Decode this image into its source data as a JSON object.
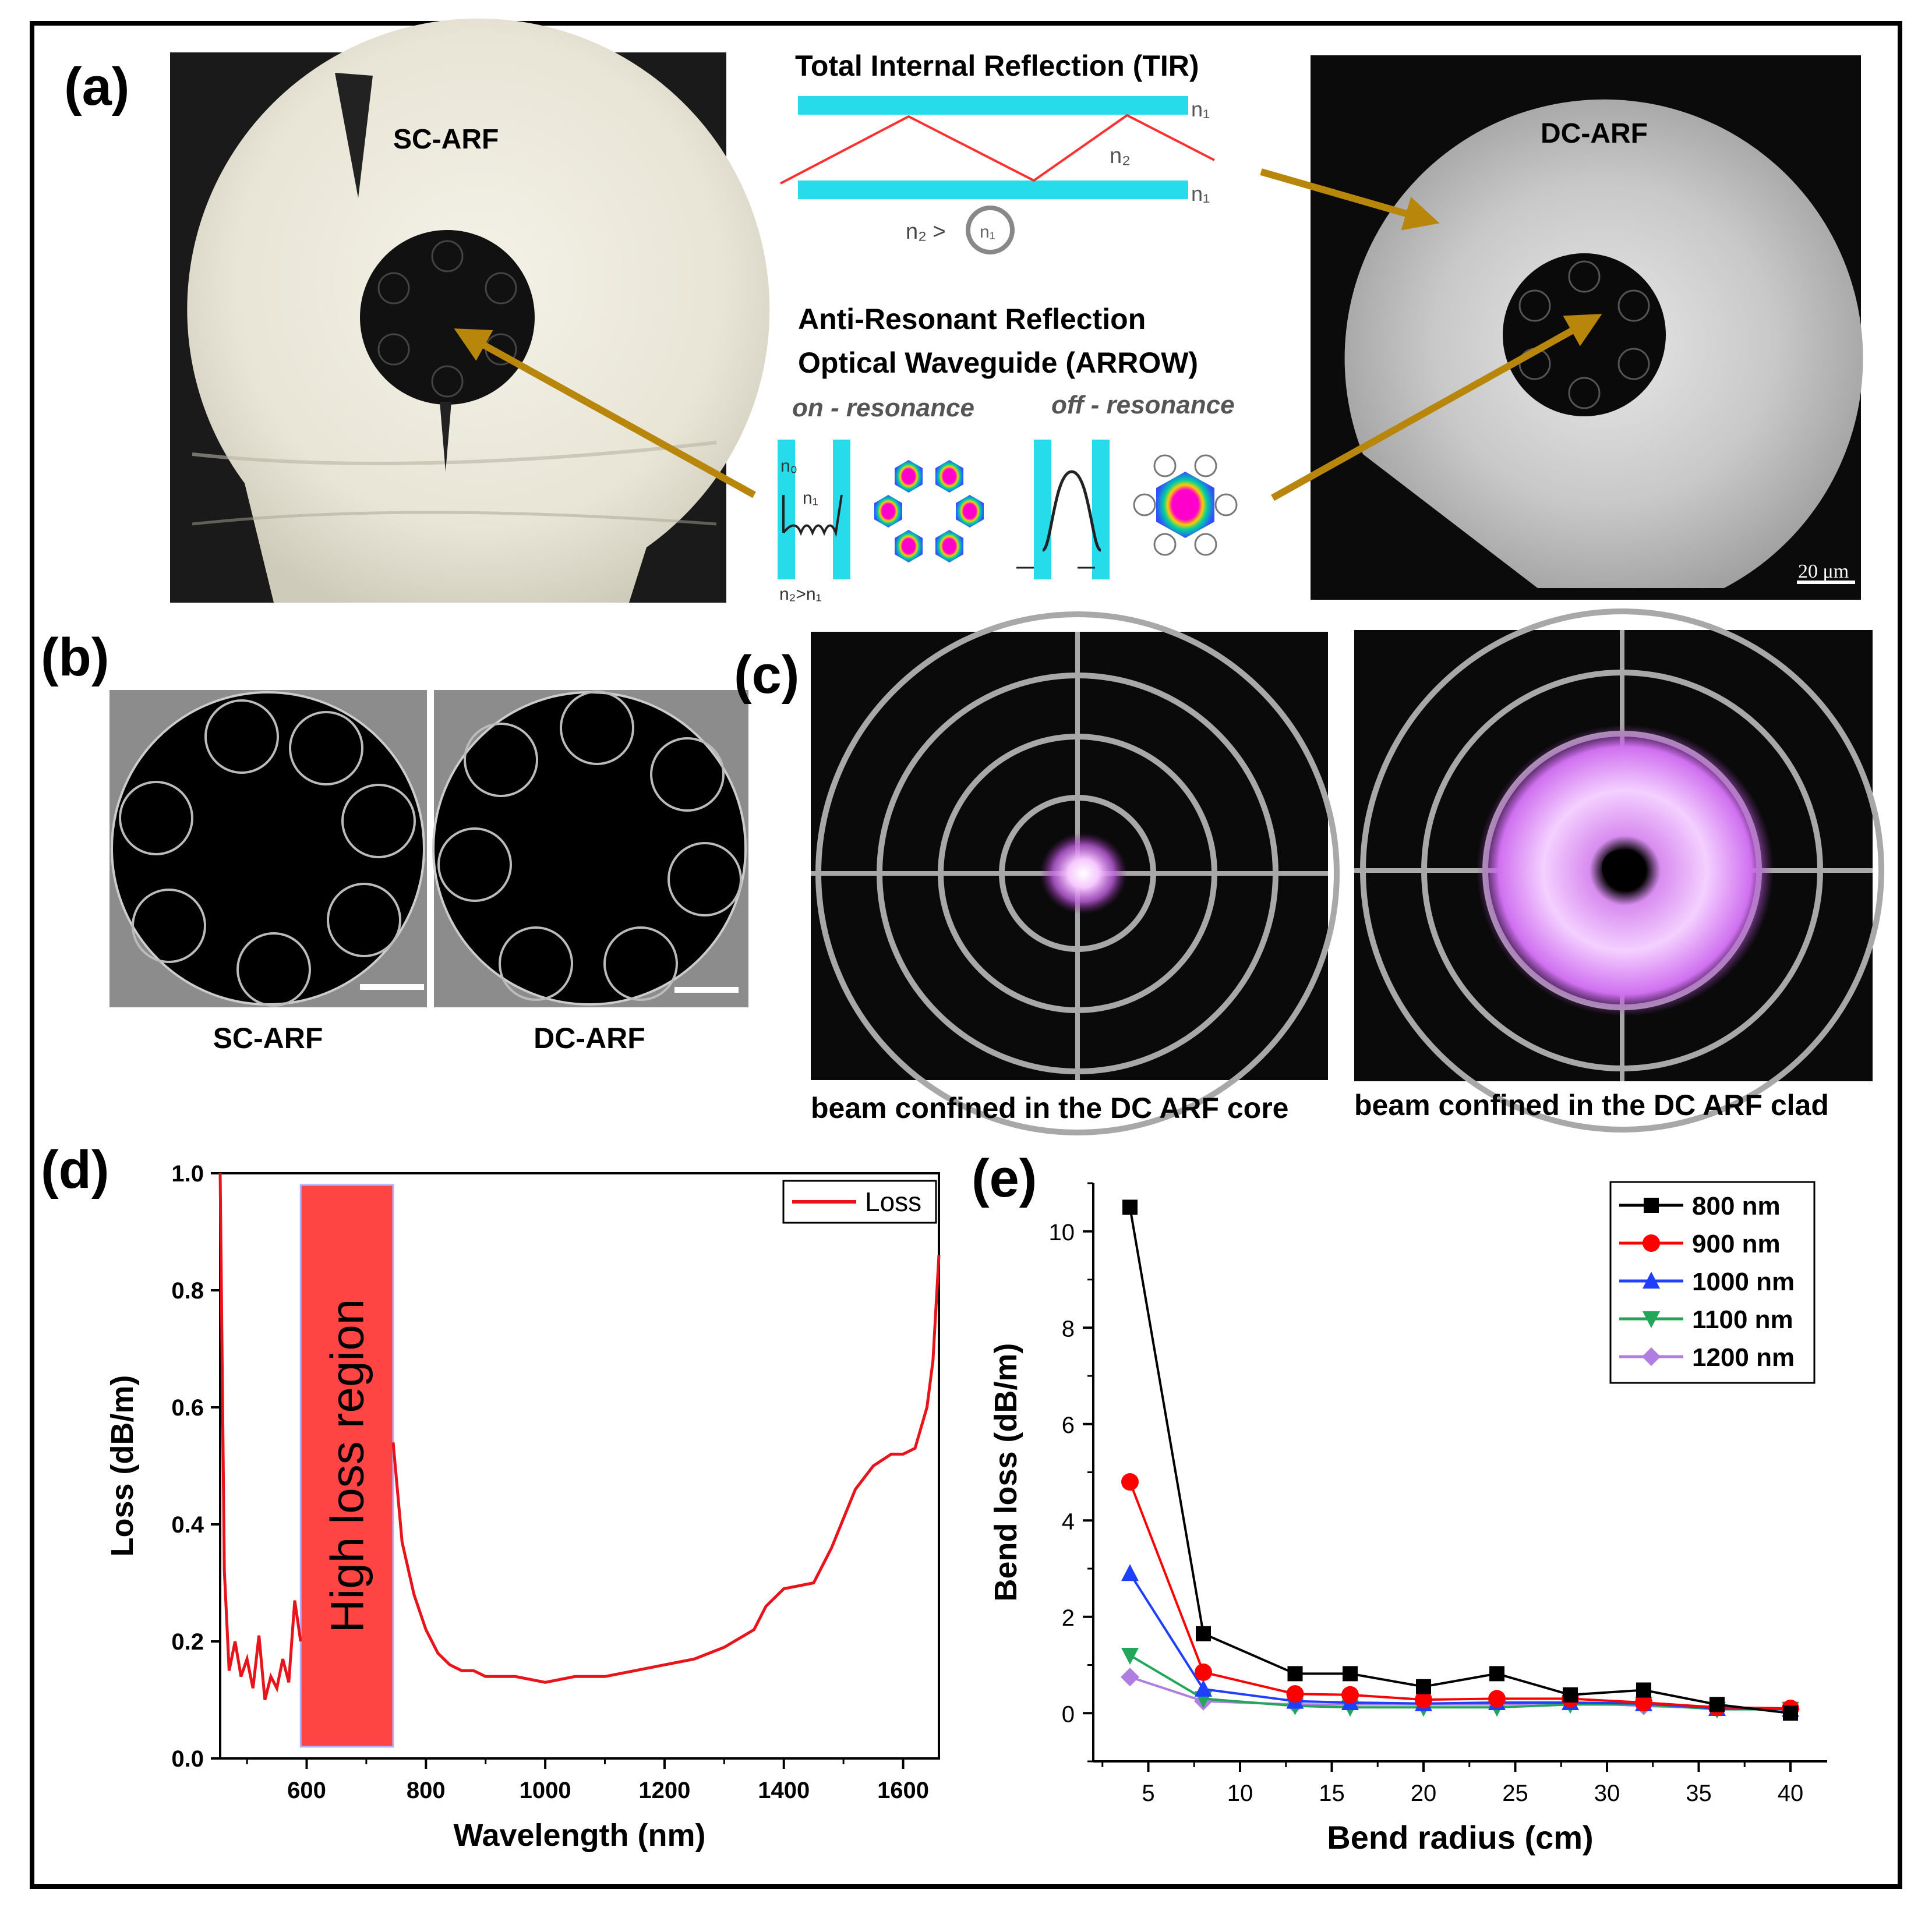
{
  "panels": {
    "a": {
      "label": "(a)",
      "sc_label": "SC-ARF",
      "dc_label": "DC-ARF",
      "tir_title": "Total Internal Reflection (TIR)",
      "n1_top": "n₁",
      "n1_bottom": "n₁",
      "n2": "n₂",
      "n2_gt": "n₂ >",
      "n1_small": "n₁",
      "arrow_title_1": "Anti-Resonant Reflection",
      "arrow_title_2": "Optical Waveguide (ARROW)",
      "on_res": "on - resonance",
      "off_res": "off - resonance",
      "n0_label": "n₀",
      "n1_label": "n₁",
      "n2gt_label": "n₂>n₁",
      "scale_bar": "20 μm"
    },
    "b": {
      "label": "(b)",
      "sc": "SC-ARF",
      "dc": "DC-ARF"
    },
    "c": {
      "label": "(c)",
      "caption_core": "beam confined in the DC ARF core",
      "caption_clad": "beam confined in the DC ARF clad"
    },
    "d": {
      "label": "(d)"
    },
    "e": {
      "label": "(e)"
    }
  },
  "chart_data": [
    {
      "type": "line",
      "panel": "d",
      "xlabel": "Wavelength (nm)",
      "ylabel": "Loss (dB/m)",
      "xlim": [
        455,
        1660
      ],
      "ylim": [
        0,
        1.0
      ],
      "xticks": [
        "600",
        "800",
        "1000",
        "1200",
        "1400",
        "1600"
      ],
      "yticks": [
        "0.0",
        "0.2",
        "0.4",
        "0.6",
        "0.8",
        "1.0"
      ],
      "legend": [
        "Loss"
      ],
      "annotation": "High loss region",
      "region_x": [
        590,
        745
      ],
      "color": "#e8141b",
      "x": [
        455,
        462,
        470,
        480,
        490,
        500,
        510,
        520,
        530,
        540,
        550,
        560,
        570,
        580,
        590,
        745,
        760,
        780,
        800,
        820,
        840,
        860,
        880,
        900,
        950,
        1000,
        1050,
        1100,
        1150,
        1200,
        1250,
        1300,
        1350,
        1370,
        1400,
        1450,
        1480,
        1500,
        1520,
        1550,
        1580,
        1600,
        1620,
        1640,
        1650,
        1660
      ],
      "y": [
        1.0,
        0.32,
        0.15,
        0.2,
        0.14,
        0.17,
        0.12,
        0.21,
        0.1,
        0.14,
        0.12,
        0.17,
        0.13,
        0.27,
        0.2,
        0.54,
        0.37,
        0.28,
        0.22,
        0.18,
        0.16,
        0.15,
        0.15,
        0.14,
        0.14,
        0.13,
        0.14,
        0.14,
        0.15,
        0.16,
        0.17,
        0.19,
        0.22,
        0.26,
        0.29,
        0.3,
        0.36,
        0.41,
        0.46,
        0.5,
        0.52,
        0.52,
        0.53,
        0.6,
        0.68,
        0.86
      ]
    },
    {
      "type": "line",
      "panel": "e",
      "xlabel": "Bend radius (cm)",
      "ylabel": "Bend loss (dB/m)",
      "xlim": [
        2,
        42
      ],
      "ylim": [
        -1,
        11
      ],
      "xticks": [
        "5",
        "10",
        "15",
        "20",
        "25",
        "30",
        "35",
        "40"
      ],
      "yticks": [
        "0",
        "2",
        "4",
        "6",
        "8",
        "10"
      ],
      "x": [
        4,
        8,
        13,
        16,
        20,
        24,
        28,
        32,
        36,
        40
      ],
      "series": [
        {
          "name": "800 nm",
          "color": "#000000",
          "marker": "square",
          "values": [
            10.5,
            1.65,
            0.82,
            0.82,
            0.55,
            0.82,
            0.38,
            0.48,
            0.18,
            0.0
          ]
        },
        {
          "name": "900 nm",
          "color": "#ff0000",
          "marker": "circle",
          "values": [
            4.8,
            0.85,
            0.4,
            0.38,
            0.28,
            0.3,
            0.3,
            0.22,
            0.12,
            0.1
          ]
        },
        {
          "name": "1000 nm",
          "color": "#1f3fff",
          "marker": "triangle-up",
          "values": [
            2.9,
            0.5,
            0.25,
            0.22,
            0.2,
            0.22,
            0.22,
            0.2,
            0.1,
            0.08
          ]
        },
        {
          "name": "1100 nm",
          "color": "#21a65a",
          "marker": "triangle-down",
          "values": [
            1.2,
            0.3,
            0.15,
            0.12,
            0.12,
            0.12,
            0.18,
            0.18,
            0.08,
            0.08
          ]
        },
        {
          "name": "1200 nm",
          "color": "#b07ee0",
          "marker": "diamond",
          "values": [
            0.75,
            0.25,
            0.18,
            0.18,
            0.18,
            0.18,
            0.22,
            0.15,
            0.1,
            0.08
          ]
        }
      ]
    }
  ]
}
